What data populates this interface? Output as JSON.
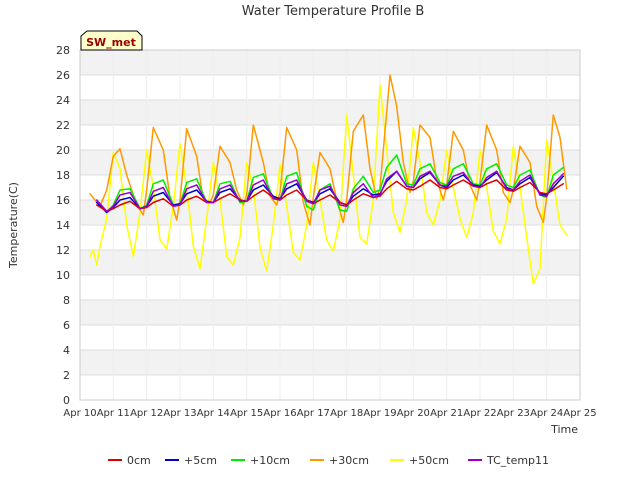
{
  "chart_data": {
    "type": "line",
    "title": "Water Temperature Profile B",
    "xlabel": "Time",
    "ylabel": "Temperature(C)",
    "site_label": "SW_met",
    "xlim": [
      10,
      25
    ],
    "ylim": [
      0,
      28
    ],
    "grid": true,
    "legend_position": "bottom",
    "x_ticks": [
      {
        "value": 10,
        "label": "Apr 10"
      },
      {
        "value": 11,
        "label": "Apr 11"
      },
      {
        "value": 12,
        "label": "Apr 12"
      },
      {
        "value": 13,
        "label": "Apr 13"
      },
      {
        "value": 14,
        "label": "Apr 14"
      },
      {
        "value": 15,
        "label": "Apr 15"
      },
      {
        "value": 16,
        "label": "Apr 16"
      },
      {
        "value": 17,
        "label": "Apr 17"
      },
      {
        "value": 18,
        "label": "Apr 18"
      },
      {
        "value": 19,
        "label": "Apr 19"
      },
      {
        "value": 20,
        "label": "Apr 20"
      },
      {
        "value": 21,
        "label": "Apr 21"
      },
      {
        "value": 22,
        "label": "Apr 22"
      },
      {
        "value": 23,
        "label": "Apr 23"
      },
      {
        "value": 24,
        "label": "Apr 24"
      },
      {
        "value": 25,
        "label": "Apr 25"
      }
    ],
    "y_ticks": [
      0,
      2,
      4,
      6,
      8,
      10,
      12,
      14,
      16,
      18,
      20,
      22,
      24,
      26,
      28
    ],
    "series": [
      {
        "name": "0cm",
        "color": "#dd0000",
        "x": [
          10.5,
          10.8,
          11.0,
          11.2,
          11.5,
          11.8,
          12.0,
          12.2,
          12.5,
          12.8,
          13.0,
          13.2,
          13.5,
          13.8,
          14.0,
          14.2,
          14.5,
          14.8,
          15.0,
          15.2,
          15.5,
          15.8,
          16.0,
          16.2,
          16.5,
          16.8,
          17.0,
          17.2,
          17.5,
          17.8,
          18.0,
          18.2,
          18.5,
          18.8,
          19.0,
          19.2,
          19.5,
          19.8,
          20.0,
          20.2,
          20.5,
          20.8,
          21.0,
          21.2,
          21.5,
          21.8,
          22.0,
          22.2,
          22.5,
          22.8,
          23.0,
          23.2,
          23.5,
          23.8,
          24.0,
          24.2,
          24.5
        ],
        "y": [
          15.6,
          15.1,
          15.3,
          15.6,
          15.9,
          15.3,
          15.4,
          15.8,
          16.1,
          15.5,
          15.6,
          16.0,
          16.3,
          15.8,
          15.8,
          16.1,
          16.5,
          16.0,
          15.9,
          16.3,
          16.8,
          16.2,
          16.0,
          16.4,
          16.8,
          16.0,
          15.7,
          16.0,
          16.4,
          15.8,
          15.6,
          16.0,
          16.5,
          16.2,
          16.3,
          16.9,
          17.5,
          16.9,
          16.8,
          17.1,
          17.6,
          17.0,
          16.9,
          17.2,
          17.6,
          17.1,
          17.0,
          17.3,
          17.6,
          16.8,
          16.7,
          17.0,
          17.4,
          16.6,
          16.5,
          16.8,
          17.3
        ]
      },
      {
        "name": "+5cm",
        "color": "#0000cc",
        "x": [
          10.5,
          10.8,
          11.0,
          11.2,
          11.5,
          11.8,
          12.0,
          12.2,
          12.5,
          12.8,
          13.0,
          13.2,
          13.5,
          13.8,
          14.0,
          14.2,
          14.5,
          14.8,
          15.0,
          15.2,
          15.5,
          15.8,
          16.0,
          16.2,
          16.5,
          16.8,
          17.0,
          17.2,
          17.5,
          17.8,
          18.0,
          18.2,
          18.5,
          18.8,
          19.0,
          19.2,
          19.5,
          19.8,
          20.0,
          20.2,
          20.5,
          20.8,
          21.0,
          21.2,
          21.5,
          21.8,
          22.0,
          22.2,
          22.5,
          22.8,
          23.0,
          23.2,
          23.5,
          23.8,
          24.0,
          24.2,
          24.5
        ],
        "y": [
          15.8,
          15.0,
          15.4,
          16.0,
          16.2,
          15.3,
          15.5,
          16.3,
          16.6,
          15.6,
          15.7,
          16.5,
          16.8,
          15.9,
          15.8,
          16.6,
          16.9,
          16.0,
          15.9,
          16.8,
          17.2,
          16.3,
          16.1,
          16.9,
          17.3,
          16.0,
          15.8,
          16.5,
          16.9,
          15.8,
          15.6,
          16.3,
          16.9,
          16.4,
          16.5,
          17.5,
          18.3,
          17.1,
          17.0,
          17.7,
          18.2,
          17.2,
          17.0,
          17.6,
          18.0,
          17.2,
          17.1,
          17.6,
          18.2,
          17.0,
          16.8,
          17.3,
          17.8,
          16.5,
          16.4,
          17.0,
          17.9
        ]
      },
      {
        "name": "+10cm",
        "color": "#00ee00",
        "x": [
          10.5,
          10.8,
          11.0,
          11.2,
          11.5,
          11.8,
          12.0,
          12.2,
          12.5,
          12.8,
          13.0,
          13.2,
          13.5,
          13.8,
          14.0,
          14.2,
          14.5,
          14.8,
          15.0,
          15.2,
          15.5,
          15.8,
          16.0,
          16.2,
          16.5,
          16.8,
          17.0,
          17.2,
          17.5,
          17.8,
          18.0,
          18.2,
          18.5,
          18.8,
          19.0,
          19.2,
          19.5,
          19.8,
          20.0,
          20.2,
          20.5,
          20.8,
          21.0,
          21.2,
          21.5,
          21.8,
          22.0,
          22.2,
          22.5,
          22.8,
          23.0,
          23.2,
          23.5,
          23.8,
          24.0,
          24.2,
          24.5
        ],
        "y": [
          15.8,
          15.0,
          15.6,
          16.8,
          16.9,
          15.3,
          15.6,
          17.3,
          17.6,
          15.6,
          15.7,
          17.4,
          17.7,
          15.8,
          15.8,
          17.3,
          17.5,
          15.8,
          15.9,
          17.8,
          18.1,
          16.1,
          16.0,
          17.9,
          18.2,
          15.5,
          15.2,
          16.8,
          17.3,
          15.2,
          15.1,
          16.9,
          17.9,
          16.6,
          16.8,
          18.6,
          19.6,
          17.3,
          17.2,
          18.5,
          18.9,
          17.4,
          17.2,
          18.5,
          18.9,
          17.3,
          17.2,
          18.5,
          18.9,
          17.2,
          17.0,
          18.0,
          18.4,
          16.4,
          16.2,
          18.0,
          18.6
        ]
      },
      {
        "name": "+30cm",
        "color": "#ff9900",
        "x": [
          10.3,
          10.6,
          10.8,
          11.0,
          11.2,
          11.4,
          11.7,
          11.9,
          12.0,
          12.2,
          12.5,
          12.7,
          12.9,
          13.0,
          13.2,
          13.5,
          13.7,
          13.9,
          14.0,
          14.2,
          14.5,
          14.7,
          14.9,
          15.0,
          15.2,
          15.5,
          15.7,
          15.9,
          16.0,
          16.2,
          16.5,
          16.7,
          16.9,
          17.0,
          17.2,
          17.5,
          17.7,
          17.9,
          18.0,
          18.2,
          18.5,
          18.7,
          18.9,
          19.0,
          19.3,
          19.5,
          19.7,
          19.9,
          20.0,
          20.2,
          20.5,
          20.7,
          20.9,
          21.0,
          21.2,
          21.5,
          21.7,
          21.9,
          22.0,
          22.2,
          22.5,
          22.7,
          22.9,
          23.0,
          23.2,
          23.5,
          23.7,
          23.9,
          24.0,
          24.2,
          24.4,
          24.6
        ],
        "y": [
          16.5,
          15.5,
          16.8,
          19.5,
          20.1,
          18.0,
          15.6,
          14.8,
          16.8,
          21.8,
          20.0,
          16.2,
          14.4,
          16.0,
          21.7,
          19.5,
          16.0,
          15.8,
          16.4,
          20.3,
          19.0,
          16.8,
          15.6,
          16.4,
          22.0,
          19.0,
          16.3,
          15.6,
          16.6,
          21.8,
          20.0,
          15.8,
          14.0,
          16.2,
          19.8,
          18.5,
          16.0,
          14.2,
          16.0,
          21.5,
          22.8,
          18.5,
          16.1,
          17.0,
          26.0,
          23.5,
          19.0,
          16.6,
          17.5,
          22.0,
          21.0,
          17.6,
          16.0,
          17.2,
          21.5,
          20.0,
          17.2,
          16.0,
          17.5,
          22.0,
          20.0,
          16.6,
          15.8,
          16.8,
          20.3,
          19.0,
          15.5,
          14.2,
          16.2,
          22.8,
          21.0,
          16.9
        ]
      },
      {
        "name": "+50cm",
        "color": "#ffff00",
        "x": [
          10.3,
          10.4,
          10.5,
          10.6,
          10.8,
          11.0,
          11.2,
          11.4,
          11.6,
          11.8,
          12.0,
          12.2,
          12.4,
          12.6,
          12.8,
          13.0,
          13.2,
          13.4,
          13.6,
          13.8,
          14.0,
          14.2,
          14.4,
          14.6,
          14.8,
          15.0,
          15.2,
          15.4,
          15.6,
          15.8,
          16.0,
          16.2,
          16.4,
          16.6,
          16.8,
          17.0,
          17.2,
          17.4,
          17.6,
          17.8,
          18.0,
          18.2,
          18.4,
          18.6,
          18.8,
          19.0,
          19.2,
          19.4,
          19.6,
          19.8,
          20.0,
          20.2,
          20.4,
          20.6,
          20.8,
          21.0,
          21.2,
          21.4,
          21.6,
          21.8,
          22.0,
          22.2,
          22.4,
          22.6,
          22.8,
          23.0,
          23.2,
          23.4,
          23.6,
          23.8,
          24.0,
          24.2,
          24.4,
          24.6
        ],
        "y": [
          11.5,
          12.0,
          10.8,
          12.3,
          14.5,
          19.8,
          18.5,
          14.0,
          11.5,
          15.0,
          20.0,
          17.0,
          12.8,
          12.1,
          15.5,
          20.5,
          17.0,
          12.3,
          10.5,
          14.5,
          19.0,
          16.0,
          11.5,
          10.8,
          13.0,
          19.0,
          17.0,
          12.2,
          10.3,
          14.0,
          18.8,
          15.5,
          11.8,
          11.2,
          14.0,
          19.0,
          16.0,
          12.8,
          11.9,
          14.5,
          22.8,
          18.0,
          13.0,
          12.5,
          16.0,
          25.2,
          20.0,
          15.0,
          13.4,
          16.0,
          21.8,
          19.0,
          15.0,
          14.0,
          16.0,
          20.0,
          17.0,
          14.5,
          13.0,
          15.0,
          20.0,
          17.0,
          13.5,
          12.5,
          14.5,
          20.3,
          17.0,
          13.0,
          9.3,
          10.5,
          20.8,
          17.5,
          14.0,
          13.2
        ]
      },
      {
        "name": "TC_temp11",
        "color": "#9900cc",
        "x": [
          10.5,
          10.8,
          11.0,
          11.2,
          11.5,
          11.8,
          12.0,
          12.2,
          12.5,
          12.8,
          13.0,
          13.2,
          13.5,
          13.8,
          14.0,
          14.2,
          14.5,
          14.8,
          15.0,
          15.2,
          15.5,
          15.8,
          16.0,
          16.2,
          16.5,
          16.8,
          17.0,
          17.2,
          17.5,
          17.8,
          18.0,
          18.2,
          18.5,
          18.8,
          19.0,
          19.2,
          19.5,
          19.8,
          20.0,
          20.2,
          20.5,
          20.8,
          21.0,
          21.2,
          21.5,
          21.8,
          22.0,
          22.2,
          22.5,
          22.8,
          23.0,
          23.2,
          23.5,
          23.8,
          24.0,
          24.2,
          24.5
        ],
        "y": [
          16.0,
          15.1,
          15.5,
          16.4,
          16.6,
          15.3,
          15.5,
          16.7,
          17.0,
          15.5,
          15.6,
          16.9,
          17.2,
          15.8,
          15.8,
          16.9,
          17.2,
          15.9,
          15.9,
          17.2,
          17.6,
          16.1,
          16.0,
          17.3,
          17.6,
          15.9,
          15.7,
          16.8,
          17.1,
          15.6,
          15.5,
          16.6,
          17.3,
          16.2,
          16.4,
          17.7,
          18.3,
          17.1,
          17.0,
          17.9,
          18.3,
          17.2,
          17.1,
          17.9,
          18.2,
          17.1,
          17.0,
          17.8,
          18.3,
          16.9,
          16.8,
          17.5,
          18.0,
          16.4,
          16.3,
          17.3,
          18.1
        ]
      }
    ]
  }
}
